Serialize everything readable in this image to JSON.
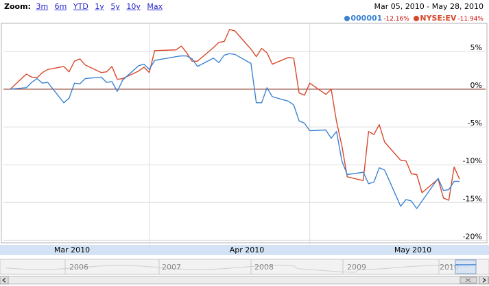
{
  "zoom": {
    "label": "Zoom:",
    "options": [
      "3m",
      "6m",
      "YTD",
      "1y",
      "5y",
      "10y",
      "Max"
    ]
  },
  "date_range": {
    "start": "Mar 05, 2010",
    "separator": " - ",
    "end": "May 28, 2010"
  },
  "legend": [
    {
      "name": "000001",
      "change": "-12.16%",
      "color": "#3b82d4"
    },
    {
      "name": "NYSE:EV",
      "change": "-11.94%",
      "color": "#d9472b"
    }
  ],
  "chart_data": {
    "type": "line",
    "x": [
      "2010-03-05",
      "2010-03-08",
      "2010-03-09",
      "2010-03-10",
      "2010-03-11",
      "2010-03-12",
      "2010-03-15",
      "2010-03-16",
      "2010-03-17",
      "2010-03-18",
      "2010-03-19",
      "2010-03-22",
      "2010-03-23",
      "2010-03-24",
      "2010-03-25",
      "2010-03-26",
      "2010-03-29",
      "2010-03-30",
      "2010-03-31",
      "2010-04-01",
      "2010-04-05",
      "2010-04-06",
      "2010-04-07",
      "2010-04-08",
      "2010-04-09",
      "2010-04-12",
      "2010-04-13",
      "2010-04-14",
      "2010-04-15",
      "2010-04-16",
      "2010-04-19",
      "2010-04-20",
      "2010-04-21",
      "2010-04-22",
      "2010-04-23",
      "2010-04-26",
      "2010-04-27",
      "2010-04-28",
      "2010-04-29",
      "2010-04-30",
      "2010-05-03",
      "2010-05-04",
      "2010-05-05",
      "2010-05-06",
      "2010-05-07",
      "2010-05-10",
      "2010-05-11",
      "2010-05-12",
      "2010-05-13",
      "2010-05-14",
      "2010-05-17",
      "2010-05-18",
      "2010-05-19",
      "2010-05-20",
      "2010-05-21",
      "2010-05-24",
      "2010-05-25",
      "2010-05-26",
      "2010-05-27",
      "2010-05-28"
    ],
    "series": [
      {
        "name": "000001",
        "color": "#3b82d4",
        "values": [
          0.0,
          0.2,
          0.9,
          1.4,
          0.8,
          0.9,
          -1.8,
          -1.2,
          0.8,
          0.7,
          1.4,
          1.6,
          0.9,
          1.0,
          -0.3,
          1.2,
          3.1,
          3.3,
          2.6,
          3.8,
          4.3,
          4.4,
          4.4,
          4.0,
          3.0,
          4.1,
          3.5,
          4.5,
          4.7,
          4.6,
          3.4,
          -1.8,
          -1.8,
          0.2,
          -1.0,
          -1.6,
          -2.1,
          -4.2,
          -4.5,
          -5.5,
          -5.4,
          -6.5,
          -5.6,
          -9.5,
          -11.3,
          -11.0,
          -12.5,
          -12.3,
          -10.4,
          -10.7,
          -15.5,
          -14.6,
          -14.8,
          -15.8,
          -14.8,
          -11.8,
          -13.4,
          -13.3,
          -12.2,
          -12.2
        ]
      },
      {
        "name": "NYSE:EV",
        "color": "#d9472b",
        "values": [
          0.0,
          2.0,
          1.6,
          1.5,
          2.2,
          2.6,
          3.0,
          2.3,
          3.7,
          4.0,
          3.2,
          2.2,
          2.3,
          3.0,
          1.3,
          1.4,
          2.4,
          2.9,
          2.2,
          5.1,
          5.2,
          5.7,
          4.8,
          3.7,
          3.7,
          5.5,
          6.2,
          6.3,
          7.9,
          7.7,
          5.3,
          4.3,
          5.4,
          4.8,
          3.3,
          4.2,
          4.1,
          -0.5,
          -0.8,
          0.8,
          -0.7,
          0.0,
          -4.3,
          -7.5,
          -11.6,
          -12.1,
          -5.6,
          -6.0,
          -4.7,
          -7.0,
          -9.4,
          -9.5,
          -11.2,
          -11.3,
          -13.7,
          -11.9,
          -14.4,
          -14.7,
          -10.3,
          -11.9
        ]
      }
    ],
    "xlim": [
      "2010-03-05",
      "2010-05-28"
    ],
    "x_ticks": [
      "Mar 2010",
      "Apr 2010",
      "May 2010"
    ],
    "ylim": [
      -20,
      10
    ],
    "y_ticks": [
      "5%",
      "0%",
      "-5%",
      "-10%",
      "-15%",
      "-20%"
    ],
    "y_tick_values": [
      5,
      0,
      -5,
      -10,
      -15,
      -20
    ],
    "grid": true,
    "y_axis_position": "right",
    "navigator": {
      "year_labels": [
        "2006",
        "2007",
        "2008",
        "2009",
        "2010"
      ]
    }
  }
}
